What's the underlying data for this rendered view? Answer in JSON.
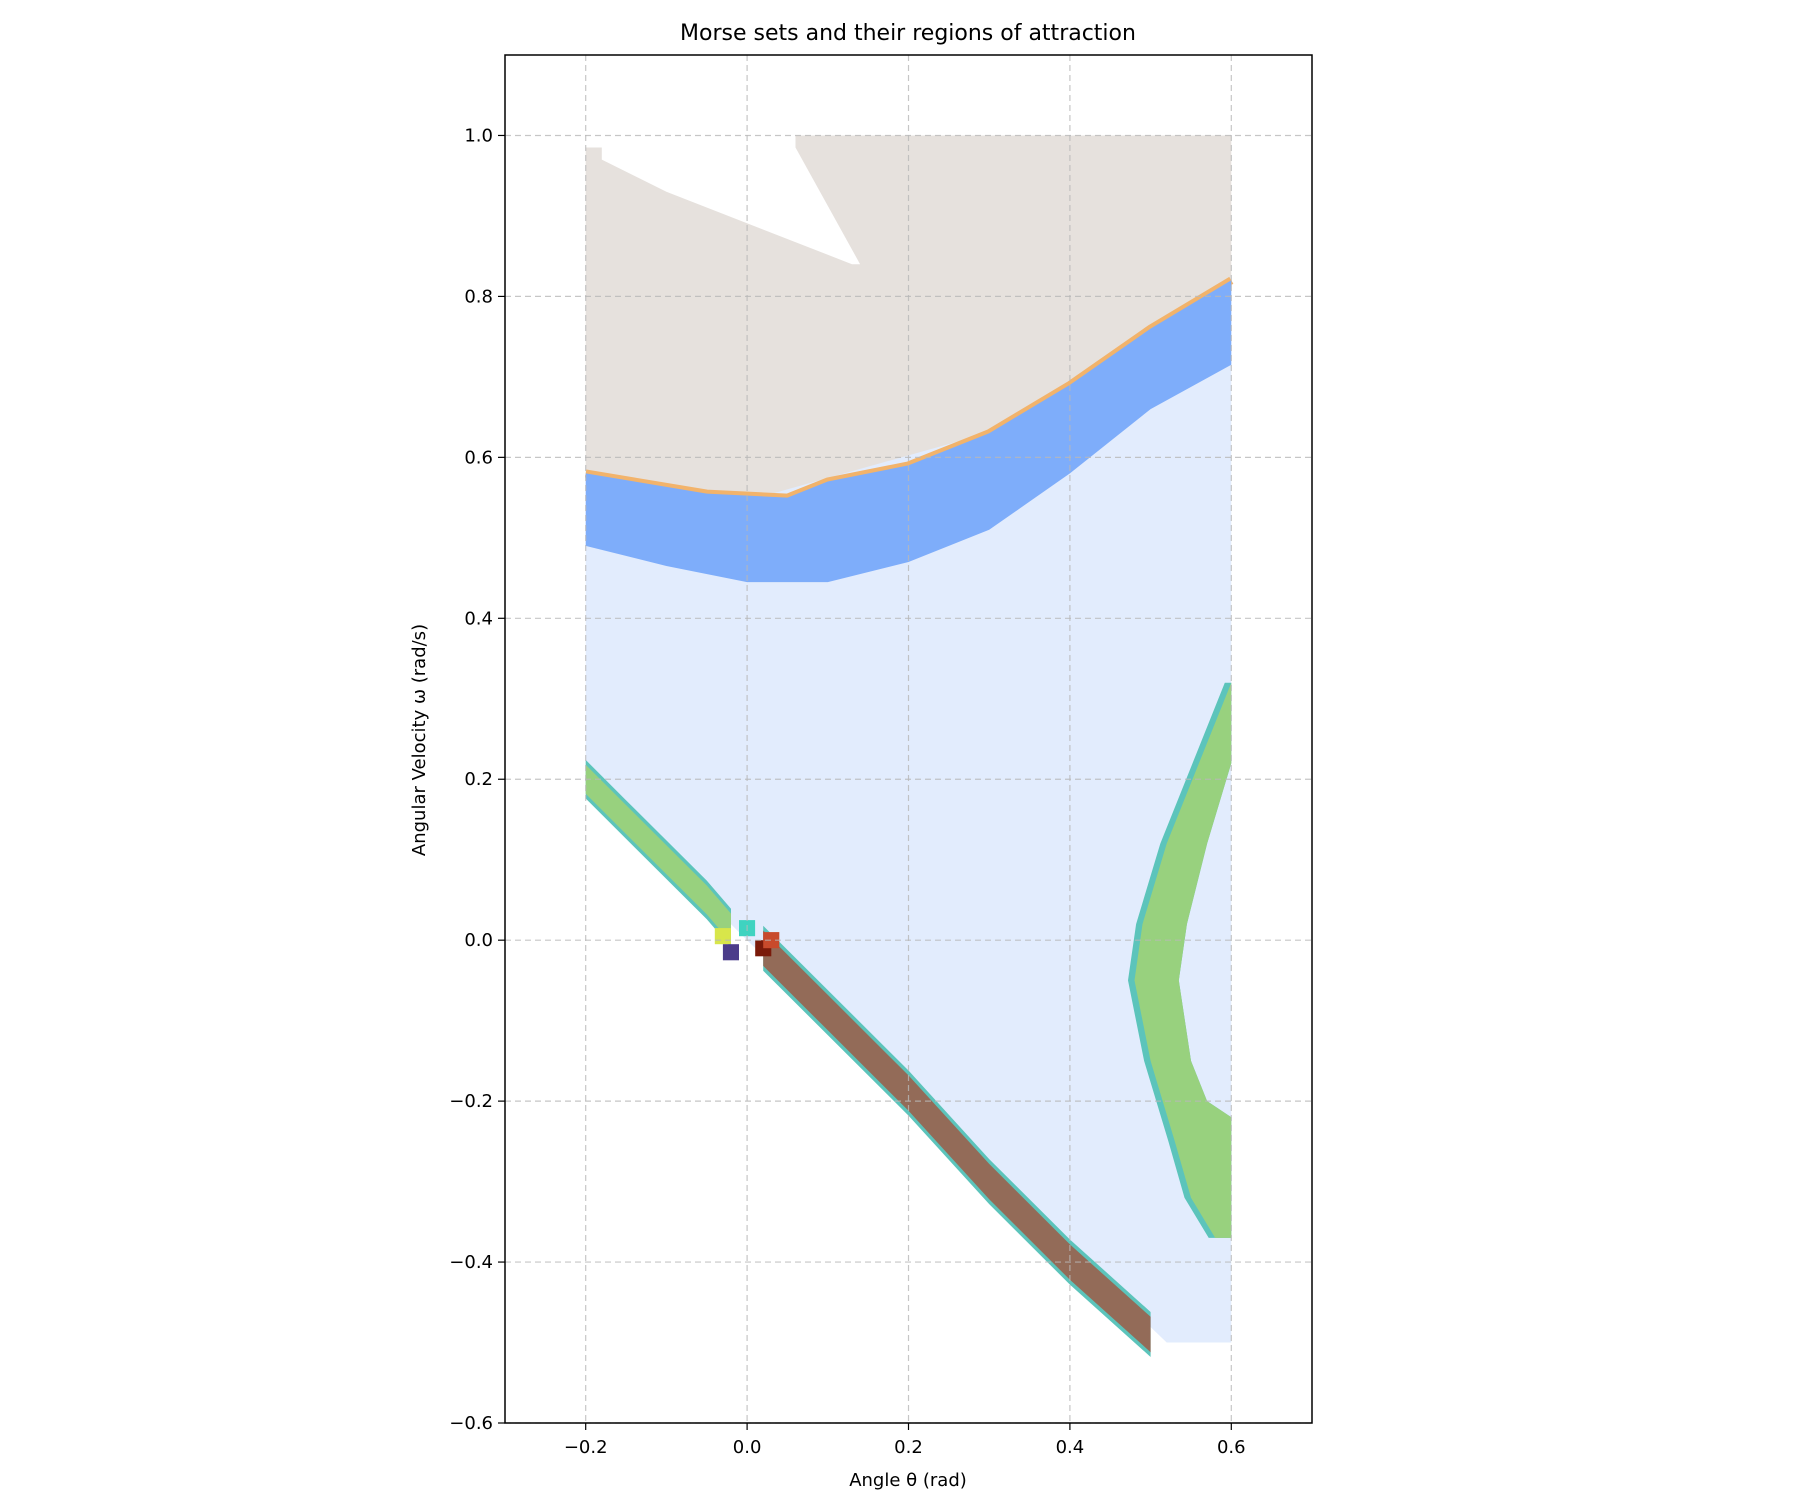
{
  "chart_data": {
    "type": "heatmap",
    "title": "Morse sets and their regions of attraction",
    "xlabel": "Angle θ (rad)",
    "ylabel": "Angular Velocity ω (rad/s)",
    "xlim": [
      -0.3,
      0.7
    ],
    "ylim": [
      -0.6,
      1.1
    ],
    "xticks": [
      -0.2,
      0.0,
      0.2,
      0.4,
      0.6
    ],
    "xtick_labels": [
      "−0.2",
      "0.0",
      "0.2",
      "0.4",
      "0.6"
    ],
    "yticks": [
      -0.6,
      -0.4,
      -0.2,
      0.0,
      0.2,
      0.4,
      0.6,
      0.8,
      1.0
    ],
    "ytick_labels": [
      "−0.6",
      "−0.4",
      "−0.2",
      "0.0",
      "0.2",
      "0.4",
      "0.6",
      "0.8",
      "1.0"
    ],
    "grid": true,
    "colors": {
      "basin_top": "#e6e1dd",
      "basin_main": "#e2ecfd",
      "blue_band": "#7eadfa",
      "orange_edge": "#f2b36b",
      "green_band": "#98d17e",
      "teal_edge": "#5cc4bb",
      "brown_band": "#936b58",
      "dark_red": "#7a1a0a",
      "red": "#c84a2c",
      "yellow": "#d8e64a",
      "indigo": "#4b3c8a",
      "cyan": "#3fd3c0"
    },
    "regions": {
      "top_basin": {
        "theta_range": [
          -0.2,
          0.6
        ],
        "omega_upper_boundary": [
          [
            -0.2,
            0.985
          ],
          [
            0.06,
            0.985
          ],
          [
            0.06,
            1.0
          ],
          [
            0.6,
            1.0
          ]
        ],
        "white_gap": [
          [
            -0.18,
            0.985
          ],
          [
            0.06,
            0.985
          ],
          [
            0.14,
            0.84
          ],
          [
            0.13,
            0.84
          ],
          [
            -0.1,
            0.93
          ],
          [
            -0.18,
            0.97
          ]
        ]
      },
      "blue_band": {
        "upper": [
          [
            -0.2,
            0.58
          ],
          [
            -0.05,
            0.555
          ],
          [
            0.05,
            0.55
          ],
          [
            0.1,
            0.57
          ],
          [
            0.2,
            0.59
          ],
          [
            0.3,
            0.63
          ],
          [
            0.4,
            0.69
          ],
          [
            0.5,
            0.76
          ],
          [
            0.6,
            0.82
          ]
        ],
        "lower": [
          [
            -0.2,
            0.49
          ],
          [
            -0.1,
            0.465
          ],
          [
            0.0,
            0.445
          ],
          [
            0.1,
            0.445
          ],
          [
            0.2,
            0.47
          ],
          [
            0.3,
            0.51
          ],
          [
            0.4,
            0.58
          ],
          [
            0.5,
            0.66
          ],
          [
            0.6,
            0.715
          ]
        ]
      },
      "main_basin": {
        "boundary": [
          [
            -0.2,
            0.49
          ],
          [
            0.6,
            0.715
          ],
          [
            0.6,
            -0.5
          ],
          [
            0.52,
            -0.5
          ],
          [
            0.0,
            0.0
          ],
          [
            -0.2,
            0.2
          ]
        ]
      },
      "left_green_band": {
        "centerline": [
          [
            -0.2,
            0.2
          ],
          [
            -0.15,
            0.15
          ],
          [
            -0.1,
            0.1
          ],
          [
            -0.05,
            0.05
          ],
          [
            -0.02,
            0.015
          ]
        ],
        "half_width": 0.018
      },
      "right_green_band": {
        "left_edge": [
          [
            0.6,
            0.32
          ],
          [
            0.56,
            0.22
          ],
          [
            0.52,
            0.12
          ],
          [
            0.49,
            0.02
          ],
          [
            0.48,
            -0.05
          ],
          [
            0.5,
            -0.15
          ],
          [
            0.53,
            -0.25
          ],
          [
            0.55,
            -0.32
          ],
          [
            0.58,
            -0.37
          ]
        ],
        "right_edge": [
          [
            0.6,
            0.32
          ],
          [
            0.6,
            0.22
          ],
          [
            0.57,
            0.12
          ],
          [
            0.545,
            0.02
          ],
          [
            0.535,
            -0.05
          ],
          [
            0.55,
            -0.15
          ],
          [
            0.57,
            -0.2
          ],
          [
            0.6,
            -0.22
          ],
          [
            0.6,
            -0.37
          ]
        ]
      },
      "brown_band": {
        "centerline": [
          [
            0.02,
            -0.01
          ],
          [
            0.1,
            -0.09
          ],
          [
            0.2,
            -0.19
          ],
          [
            0.3,
            -0.3
          ],
          [
            0.4,
            -0.4
          ],
          [
            0.5,
            -0.49
          ]
        ],
        "half_width": 0.022,
        "end": [
          0.52,
          -0.5
        ]
      },
      "center_cells": [
        {
          "theta": 0.02,
          "omega": -0.01,
          "color": "dark_red"
        },
        {
          "theta": 0.03,
          "omega": 0.0,
          "color": "red"
        },
        {
          "theta": -0.03,
          "omega": 0.005,
          "color": "yellow"
        },
        {
          "theta": -0.02,
          "omega": -0.015,
          "color": "indigo"
        },
        {
          "theta": 0.0,
          "omega": 0.015,
          "color": "cyan"
        }
      ]
    }
  }
}
